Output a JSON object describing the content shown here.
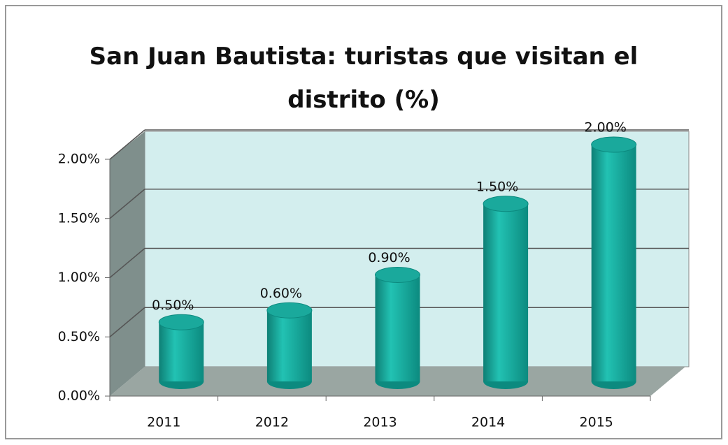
{
  "chart_data": {
    "type": "bar",
    "title": "San Juan Bautista: turistas que visitan el distrito (%)",
    "categories": [
      "2011",
      "2012",
      "2013",
      "2014",
      "2015"
    ],
    "values": [
      0.5,
      0.6,
      0.9,
      1.5,
      2.0
    ],
    "value_labels": [
      "0.50%",
      "0.60%",
      "0.90%",
      "1.50%",
      "2.00%"
    ],
    "color": "#1aa99c",
    "ylim": [
      0,
      2.0
    ],
    "yticks": [
      {
        "value": 0,
        "label": "0.00%"
      },
      {
        "value": 0.5,
        "label": "0.50%"
      },
      {
        "value": 1.0,
        "label": "1.00%"
      },
      {
        "value": 1.5,
        "label": "1.50%"
      },
      {
        "value": 2.0,
        "label": "2.00%"
      }
    ],
    "grid": true
  }
}
